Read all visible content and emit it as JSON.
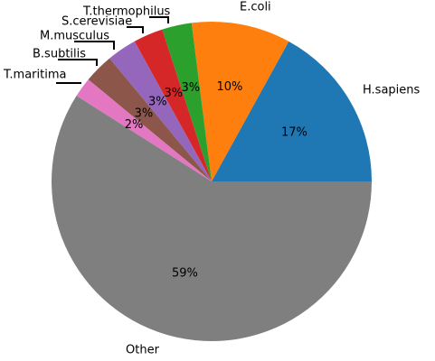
{
  "chart_data": {
    "type": "pie",
    "title": "",
    "start_angle_deg": 0,
    "direction": "counterclockwise",
    "slices": [
      {
        "label": "H.sapiens",
        "value": 17,
        "pct_label": "17%",
        "color": "#1f77b4"
      },
      {
        "label": "E.coli",
        "value": 10,
        "pct_label": "10%",
        "color": "#ff7f0e"
      },
      {
        "label": "T.thermophilus",
        "value": 3,
        "pct_label": "3%",
        "color": "#2ca02c"
      },
      {
        "label": "S.cerevisiae",
        "value": 3,
        "pct_label": "3%",
        "color": "#d62728"
      },
      {
        "label": "M.musculus",
        "value": 3,
        "pct_label": "3%",
        "color": "#9467bd"
      },
      {
        "label": "B.subtilis",
        "value": 3,
        "pct_label": "3%",
        "color": "#8c564b"
      },
      {
        "label": "T.maritima",
        "value": 2,
        "pct_label": "2%",
        "color": "#e377c2"
      },
      {
        "label": "Other",
        "value": 59,
        "pct_label": "59%",
        "color": "#7f7f7f"
      }
    ]
  }
}
